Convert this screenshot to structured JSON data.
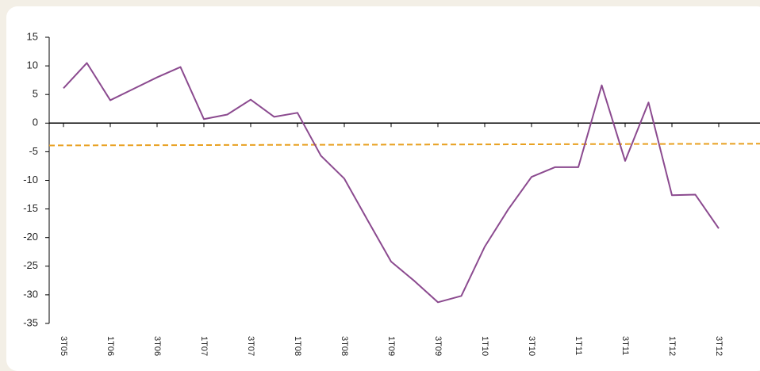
{
  "chart_data": {
    "type": "line",
    "categories": [
      "3T05",
      null,
      "1T06",
      null,
      "3T06",
      null,
      "1T07",
      null,
      "3T07",
      null,
      "1T08",
      null,
      "3T08",
      null,
      "1T09",
      null,
      "3T09",
      null,
      "1T10",
      null,
      "3T10",
      null,
      "1T11",
      null,
      "3T11",
      null,
      "1T12",
      null,
      "3T12"
    ],
    "series": [
      {
        "color": "#8b4a8f",
        "values": [
          6.1,
          10.5,
          4.0,
          6.0,
          8.0,
          9.8,
          0.7,
          1.5,
          4.1,
          1.1,
          1.8,
          -5.7,
          -9.7,
          -17.0,
          -24.2,
          -27.6,
          -31.3,
          -30.2,
          -21.6,
          -15.1,
          -9.4,
          -7.7,
          -7.7,
          6.6,
          -6.6,
          3.6,
          -12.6,
          -12.5,
          -18.4
        ]
      }
    ],
    "trend": {
      "color": "#e8a020",
      "values": [
        -3.9,
        -3.6
      ]
    },
    "ylim": [
      -35,
      15
    ],
    "yticks": [
      -35,
      -30,
      -25,
      -20,
      -15,
      -10,
      -5,
      0,
      5,
      10,
      15
    ]
  }
}
